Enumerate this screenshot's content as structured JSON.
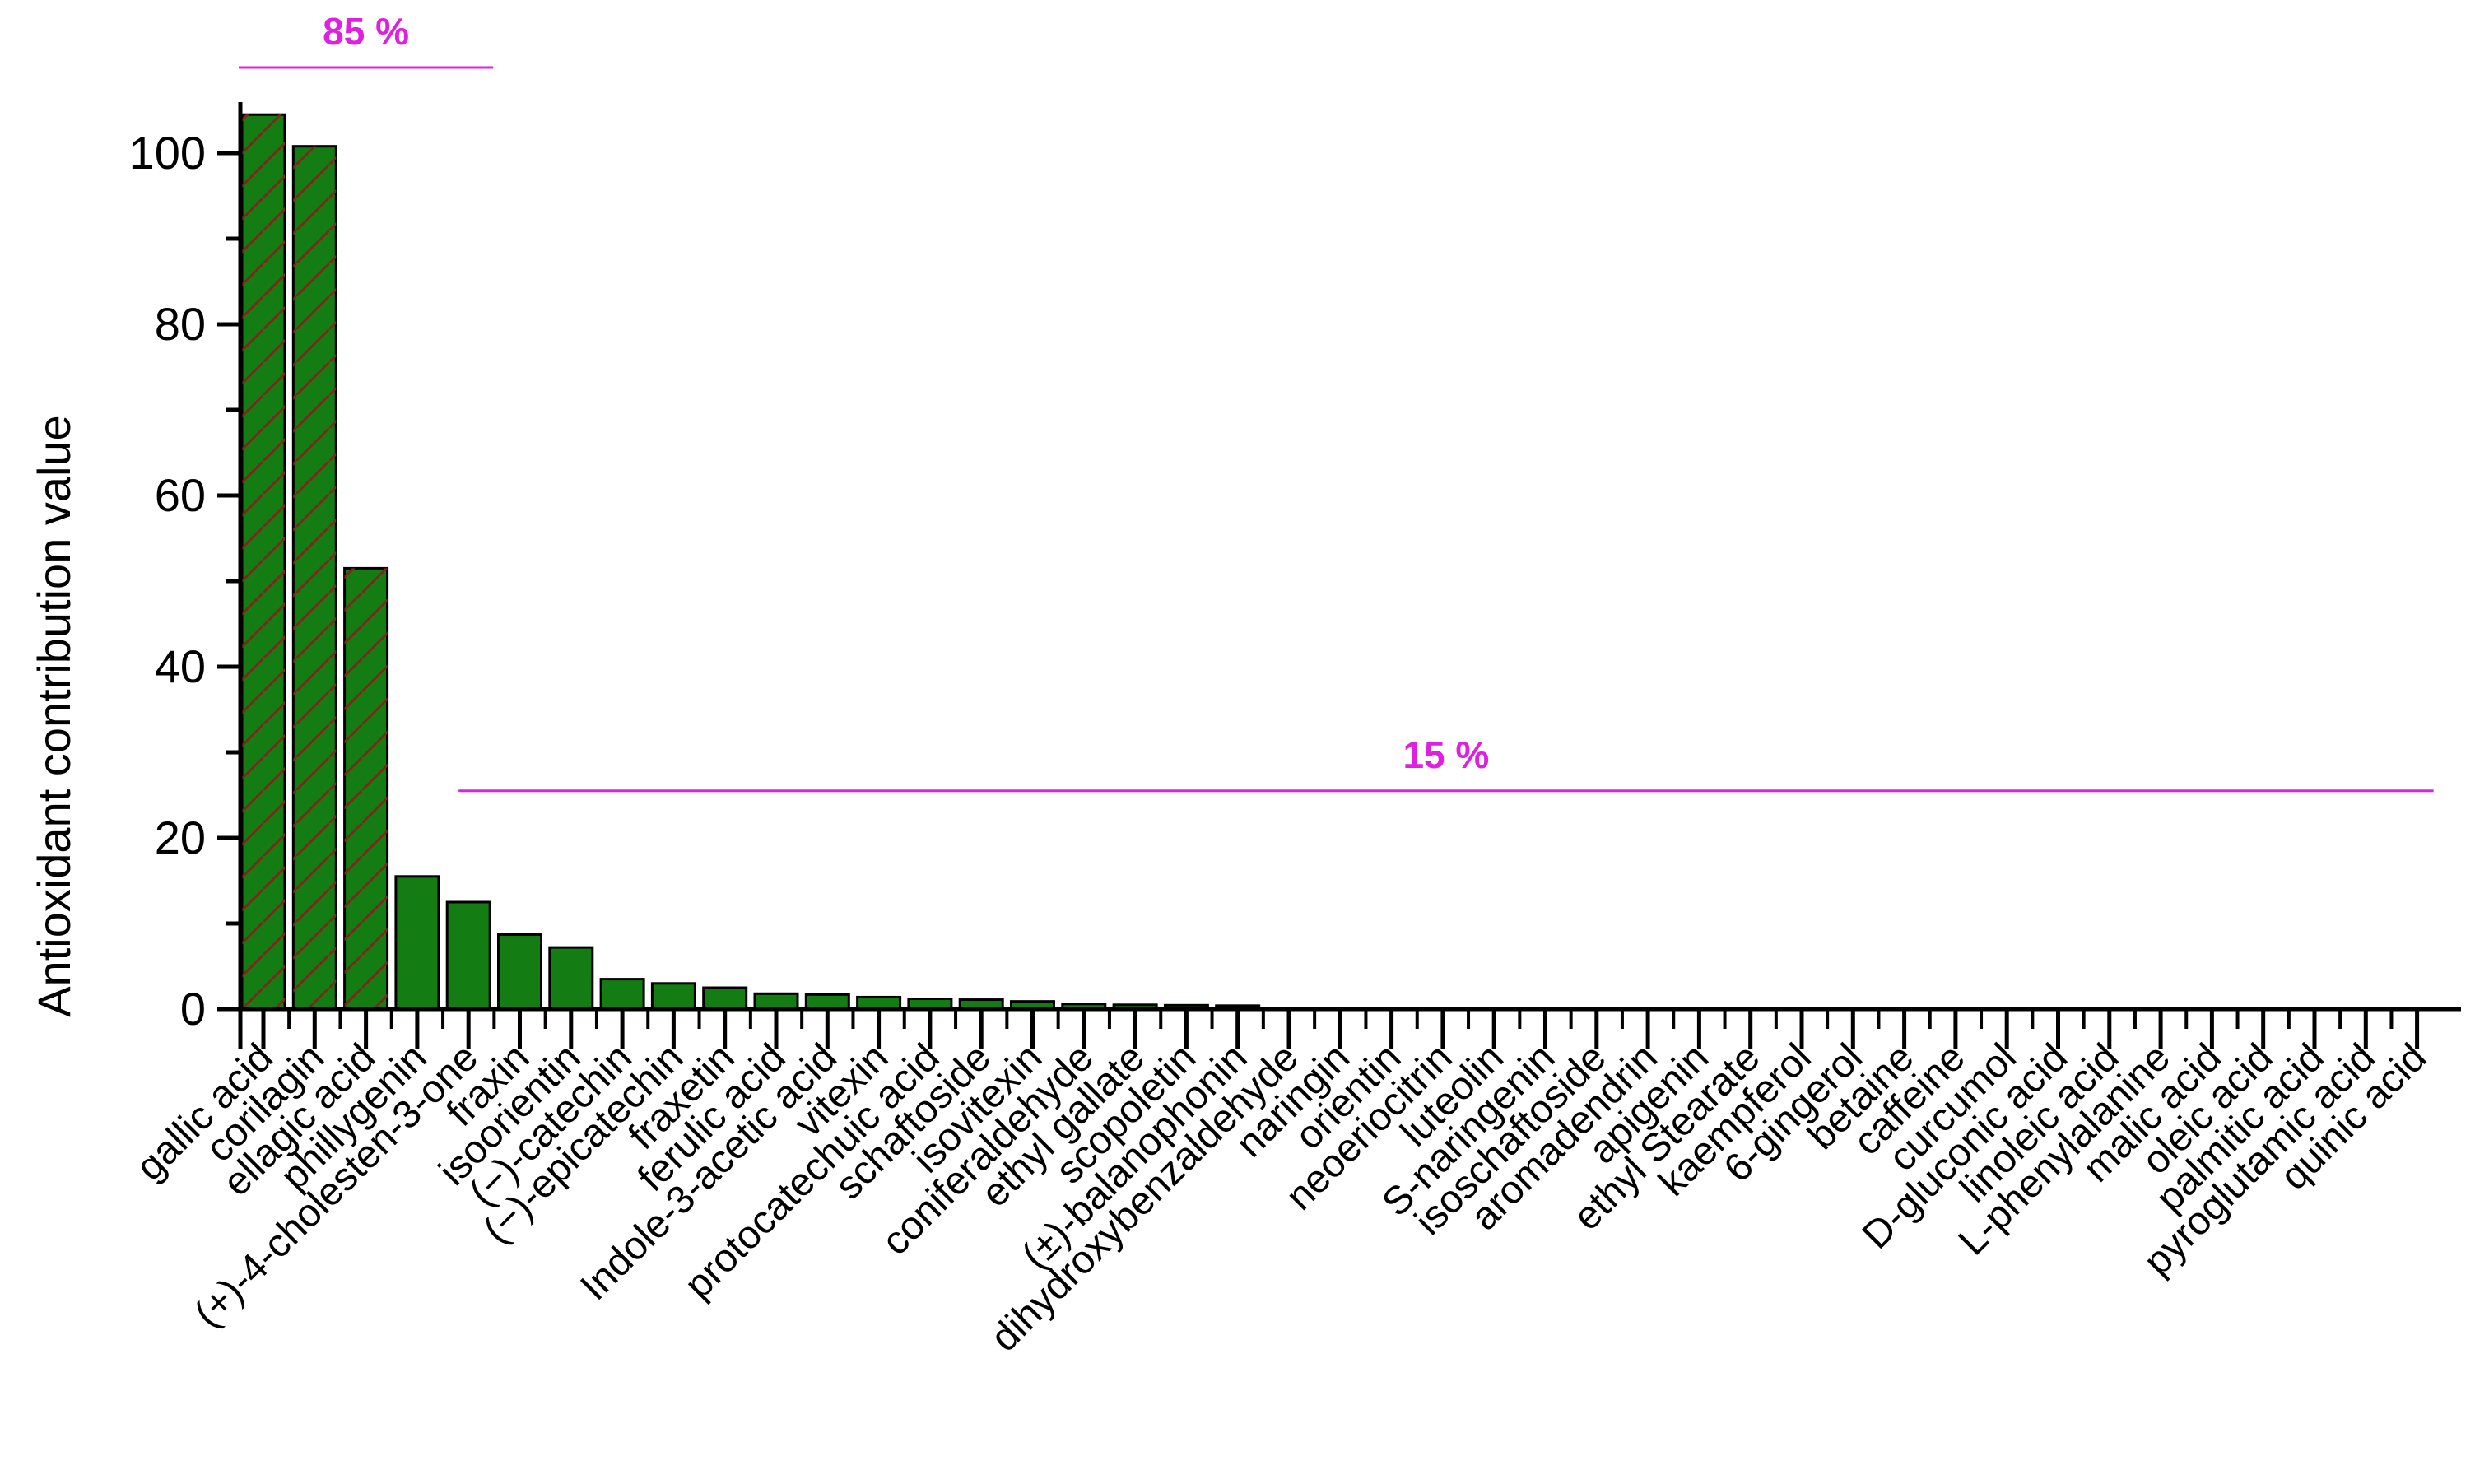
{
  "chart_data": {
    "type": "bar",
    "title": "",
    "xlabel": "",
    "ylabel": "Antioxidant contribution value",
    "ylim": [
      0,
      105
    ],
    "yticks": [
      0,
      20,
      40,
      60,
      80,
      100
    ],
    "grid": false,
    "legend": "none",
    "categories": [
      "gallic acid",
      "corilagin",
      "ellagic acid",
      "phillygenin",
      "(+)-4-cholesten-3-one",
      "fraxin",
      "isoorientin",
      "(−)-catechin",
      "(−)-epicatechin",
      "fraxetin",
      "ferulic acid",
      "Indole-3-acetic acid",
      "vitexin",
      "protocatechuic acid",
      "schaftoside",
      "isovitexin",
      "coniferaldehyde",
      "ethyl gallate",
      "scopoletin",
      "(±)-balanophonin",
      "dihydroxybenzaldehyde",
      "naringin",
      "orientin",
      "neoeriocitrin",
      "luteolin",
      "S-naringenin",
      "isoschaftoside",
      "aromadendrin",
      "apigenin",
      "ethyl Stearate",
      "kaempferol",
      "6-gingerol",
      "betaine",
      "caffeine",
      "curcumol",
      "D-gluconic acid",
      "linoleic acid",
      "L-phenylalanine",
      "malic acid",
      "oleic acid",
      "palmitic acid",
      "pyroglutamic acid",
      "quinic acid"
    ],
    "values": [
      104.5,
      100.8,
      51.5,
      15.5,
      12.5,
      8.7,
      7.2,
      3.5,
      3.0,
      2.5,
      1.8,
      1.7,
      1.4,
      1.2,
      1.1,
      0.9,
      0.6,
      0.5,
      0.45,
      0.4,
      0.05,
      0.04,
      0.03,
      0.03,
      0.03,
      0.02,
      0.02,
      0.02,
      0.02,
      0.02,
      0.02,
      0.01,
      0.01,
      0.01,
      0.01,
      0.01,
      0.01,
      0.01,
      0.01,
      0.01,
      0.01,
      0.01,
      0.01
    ],
    "annotations": [
      {
        "text": "85 %",
        "from": "gallic acid",
        "to": "(+)-4-cholesten-3-one",
        "y": 110
      },
      {
        "text": "15 %",
        "from": "(+)-4-cholesten-3-one",
        "to": "quinic acid",
        "y": 25.5
      }
    ],
    "colors": {
      "bar_fill": "#137d13",
      "bar_stroke": "#000000",
      "hatch": "#7a2a1a",
      "annotation": "#e020e0"
    }
  }
}
